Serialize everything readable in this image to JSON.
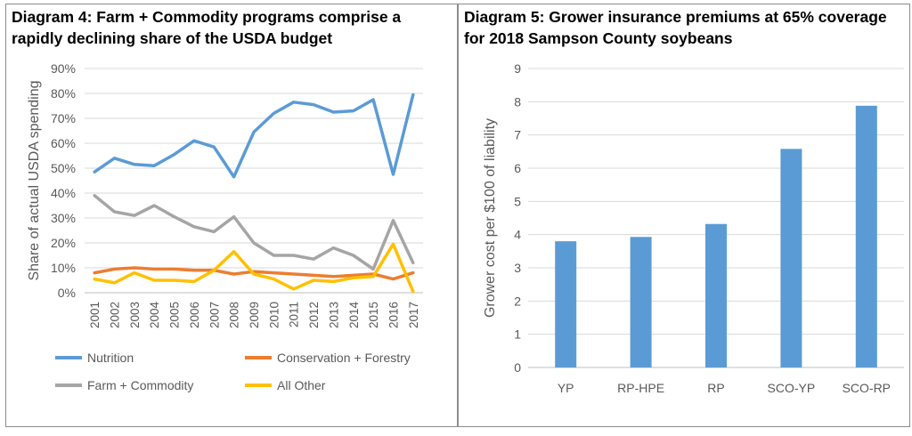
{
  "diagram4": {
    "title_line1": "Diagram 4: Farm + Commodity programs comprise a",
    "title_line2": "rapidly declining share of the USDA budget"
  },
  "diagram5": {
    "title_line1": "Diagram 5: Grower insurance premiums at 65% coverage",
    "title_line2": "for 2018 Sampson County soybeans"
  },
  "chart_data": [
    {
      "type": "line",
      "title": "Diagram 4: Farm + Commodity programs comprise a rapidly declining share of the USDA budget",
      "xlabel": "",
      "ylabel": "Share of actual USDA spending",
      "ylim": [
        0,
        90
      ],
      "yticks": [
        "0%",
        "10%",
        "20%",
        "30%",
        "40%",
        "50%",
        "60%",
        "70%",
        "80%",
        "90%"
      ],
      "x": [
        "2001",
        "2002",
        "2003",
        "2004",
        "2005",
        "2006",
        "2007",
        "2008",
        "2009",
        "2010",
        "2011",
        "2012",
        "2013",
        "2014",
        "2015",
        "2016",
        "2017"
      ],
      "grid": true,
      "legend": "bottom",
      "series": [
        {
          "name": "Nutrition",
          "color": "#5b9bd5",
          "values": [
            48.5,
            54,
            51.5,
            51,
            55.5,
            61,
            58.5,
            46.5,
            64.5,
            72,
            76.5,
            75.5,
            72.5,
            73,
            77.5,
            47.5,
            79.5
          ]
        },
        {
          "name": "Conservation + Forestry",
          "color": "#ed7d31",
          "values": [
            8,
            9.5,
            10,
            9.5,
            9.5,
            9,
            9,
            7.5,
            8.5,
            8,
            7.5,
            7,
            6.5,
            7,
            7.5,
            5.5,
            8
          ]
        },
        {
          "name": "Farm + Commodity",
          "color": "#a5a5a5",
          "values": [
            39,
            32.5,
            31,
            35,
            30.5,
            26.5,
            24.5,
            30.5,
            20,
            15,
            15,
            13.5,
            18,
            15,
            9.5,
            29,
            12
          ]
        },
        {
          "name": "All Other",
          "color": "#ffc000",
          "values": [
            5.5,
            4,
            8,
            5,
            5,
            4.5,
            9,
            16.5,
            7.5,
            5.5,
            1.5,
            5,
            4.5,
            6,
            6.5,
            19.5,
            0.5
          ]
        }
      ]
    },
    {
      "type": "bar",
      "title": "Diagram 5: Grower insurance premiums at 65% coverage for 2018 Sampson County soybeans",
      "xlabel": "",
      "ylabel": "Grower cost per $100 of liability",
      "ylim": [
        0,
        9
      ],
      "yticks": [
        "0",
        "1",
        "2",
        "3",
        "4",
        "5",
        "6",
        "7",
        "8",
        "9"
      ],
      "grid": true,
      "color": "#5b9bd5",
      "categories": [
        "YP",
        "RP-HPE",
        "RP",
        "SCO-YP",
        "SCO-RP"
      ],
      "values": [
        3.8,
        3.93,
        4.32,
        6.58,
        7.88
      ]
    }
  ]
}
